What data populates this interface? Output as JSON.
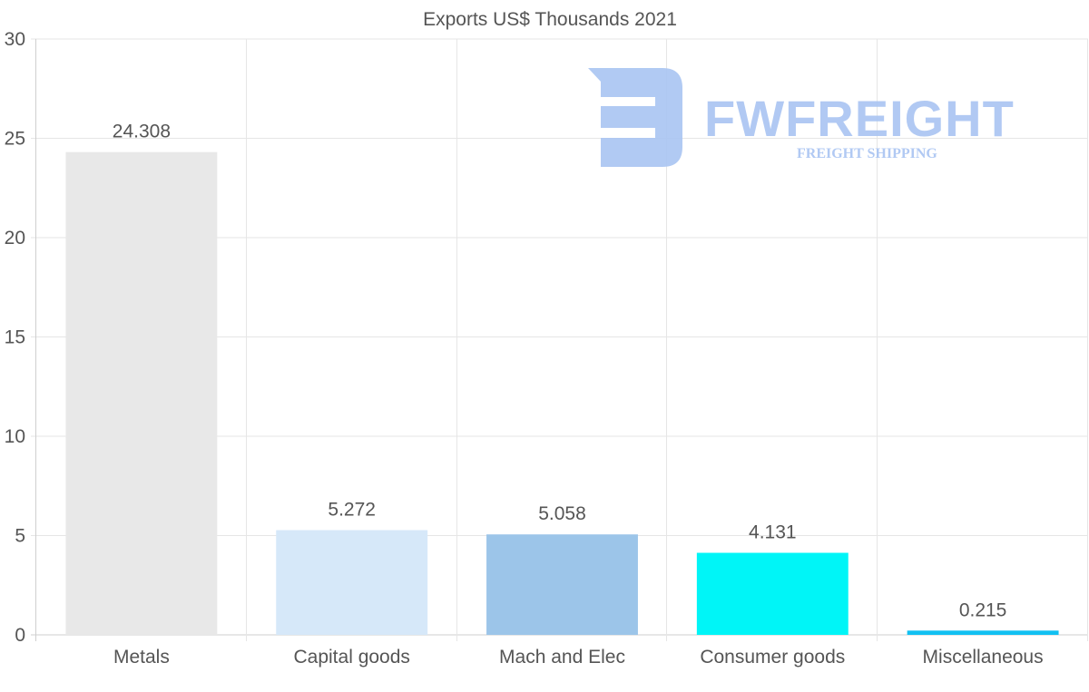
{
  "chart_data": {
    "type": "bar",
    "title": "Exports US$ Thousands 2021",
    "categories": [
      "Metals",
      "Capital goods",
      "Mach and Elec",
      "Consumer goods",
      "Miscellaneous"
    ],
    "values": [
      24.308,
      5.272,
      5.058,
      4.131,
      0.215
    ],
    "value_labels": [
      "24.308",
      "5.272",
      "5.058",
      "4.131",
      "0.215"
    ],
    "bar_colors": [
      "#e8e8e8",
      "#d6e8f9",
      "#9cc5e9",
      "#00f5f7",
      "#12c0f2"
    ],
    "ylim": [
      0,
      30
    ],
    "yticks": [
      0,
      5,
      10,
      15,
      20,
      25,
      30
    ],
    "xlabel": "",
    "ylabel": "",
    "grid": true,
    "legend": "none"
  },
  "watermark": {
    "name": "FWFREIGHT",
    "tagline": "FREIGHT SHIPPING",
    "color": "#a9c4f2"
  }
}
